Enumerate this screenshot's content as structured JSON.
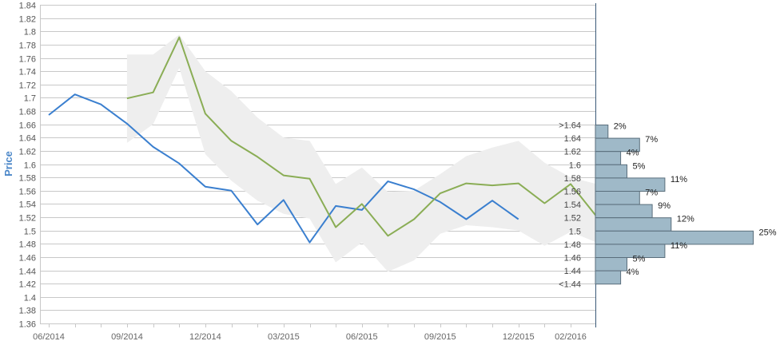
{
  "chart_data": {
    "type": "line",
    "ylabel": "Price",
    "ylim": [
      1.36,
      1.84
    ],
    "y_ticks": [
      "1.84",
      "1.82",
      "1.8",
      "1.78",
      "1.76",
      "1.74",
      "1.72",
      "1.7",
      "1.68",
      "1.66",
      "1.64",
      "1.62",
      "1.6",
      "1.58",
      "1.56",
      "1.54",
      "1.52",
      "1.5",
      "1.48",
      "1.46",
      "1.44",
      "1.42",
      "1.4",
      "1.38",
      "1.36"
    ],
    "x_ticks": [
      {
        "label": "06/2014",
        "month": 0
      },
      {
        "label": "09/2014",
        "month": 3
      },
      {
        "label": "12/2014",
        "month": 6
      },
      {
        "label": "03/2015",
        "month": 9
      },
      {
        "label": "06/2015",
        "month": 12
      },
      {
        "label": "09/2015",
        "month": 15
      },
      {
        "label": "12/2015",
        "month": 18
      },
      {
        "label": "02/2016",
        "month": 20
      }
    ],
    "series": [
      {
        "color": "#3a7fcf",
        "x": [
          0,
          1,
          2,
          3,
          4,
          5,
          6,
          7,
          8,
          9,
          10,
          11,
          12,
          13,
          14,
          15,
          16,
          17,
          18
        ],
        "values": [
          1.674,
          1.705,
          1.69,
          1.661,
          1.626,
          1.601,
          1.566,
          1.56,
          1.509,
          1.546,
          1.482,
          1.537,
          1.531,
          1.574,
          1.562,
          1.543,
          1.517,
          1.545,
          1.517
        ]
      },
      {
        "color": "#8aad55",
        "x": [
          3,
          4,
          5,
          6,
          7,
          8,
          9,
          10,
          11,
          12,
          13,
          14,
          15,
          16,
          17,
          18,
          19,
          20,
          21
        ],
        "values": [
          1.699,
          1.708,
          1.791,
          1.676,
          1.635,
          1.611,
          1.583,
          1.578,
          1.505,
          1.54,
          1.492,
          1.517,
          1.556,
          1.571,
          1.568,
          1.571,
          1.541,
          1.57,
          1.521
        ]
      }
    ],
    "band": {
      "color": "#eeeeee",
      "x": [
        3,
        4,
        5,
        6,
        7,
        8,
        9,
        10,
        11,
        12,
        13,
        14,
        15,
        16,
        17,
        18,
        19,
        20,
        21
      ],
      "upper": [
        1.765,
        1.765,
        1.795,
        1.74,
        1.71,
        1.67,
        1.64,
        1.635,
        1.57,
        1.595,
        1.558,
        1.56,
        1.585,
        1.612,
        1.625,
        1.635,
        1.602,
        1.58,
        1.57
      ],
      "lower": [
        1.632,
        1.66,
        1.745,
        1.615,
        1.575,
        1.545,
        1.525,
        1.518,
        1.452,
        1.482,
        1.438,
        1.455,
        1.495,
        1.508,
        1.505,
        1.5,
        1.477,
        1.498,
        1.482
      ]
    },
    "histogram": {
      "color": "#9fb9c8",
      "bins": [
        {
          "label": ">1.64",
          "pct": 2,
          "pct_label": "2%"
        },
        {
          "label": "1.64",
          "pct": 7,
          "pct_label": "7%"
        },
        {
          "label": "1.62",
          "pct": 4,
          "pct_label": "4%"
        },
        {
          "label": "1.6",
          "pct": 5,
          "pct_label": "5%"
        },
        {
          "label": "1.58",
          "pct": 11,
          "pct_label": "11%"
        },
        {
          "label": "1.56",
          "pct": 7,
          "pct_label": "7%"
        },
        {
          "label": "1.54",
          "pct": 9,
          "pct_label": "9%"
        },
        {
          "label": "1.52",
          "pct": 12,
          "pct_label": "12%"
        },
        {
          "label": "1.5",
          "pct": 25,
          "pct_label": "25%"
        },
        {
          "label": "1.48",
          "pct": 11,
          "pct_label": "11%"
        },
        {
          "label": "1.46",
          "pct": 5,
          "pct_label": "5%"
        },
        {
          "label": "1.44",
          "pct": 4,
          "pct_label": "4%"
        },
        {
          "label": "<1.44",
          "pct": null,
          "pct_label": ""
        }
      ]
    }
  }
}
